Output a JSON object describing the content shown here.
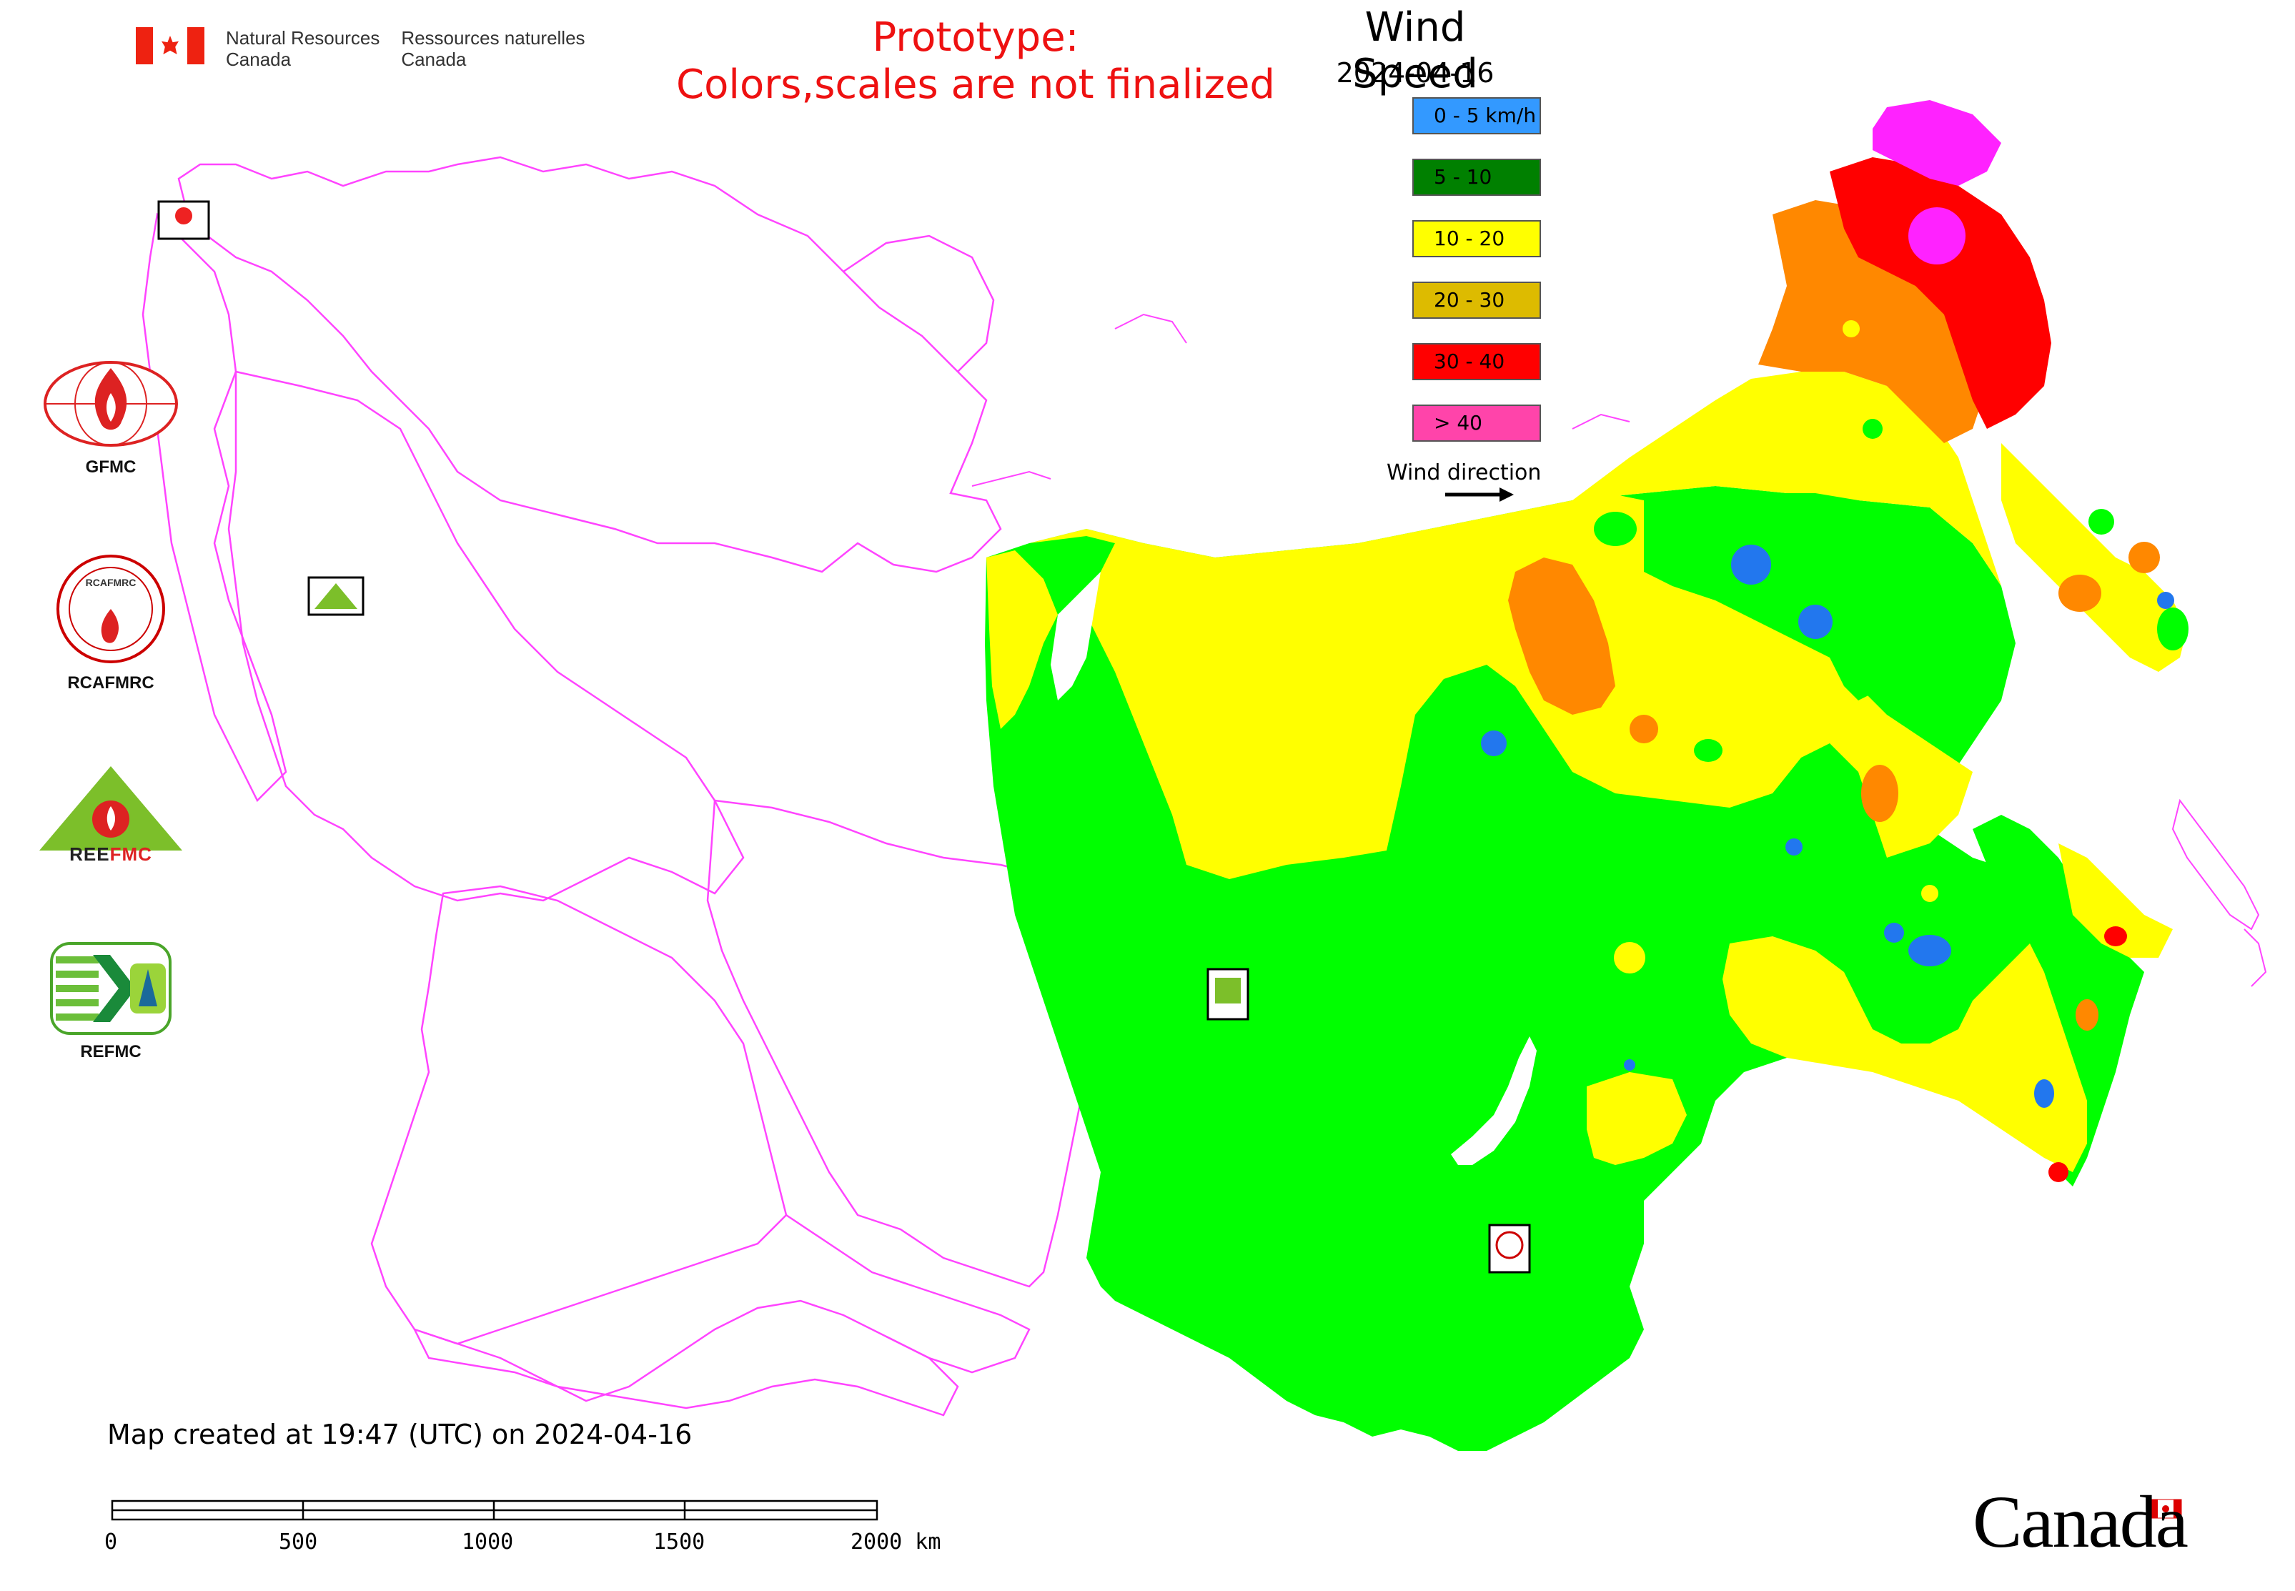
{
  "header": {
    "gov_en_line1": "Natural Resources",
    "gov_en_line2": "Canada",
    "gov_fr_line1": "Ressources naturelles",
    "gov_fr_line2": "Canada"
  },
  "prototype_notice": {
    "line1": "Prototype:",
    "line2": "Colors,scales are not finalized"
  },
  "legend": {
    "title": "Wind Speed",
    "date": "2024-04-16",
    "items": [
      {
        "label": "0 - 5 km/h",
        "color": "#3399ff"
      },
      {
        "label": "5 - 10",
        "color": "#008000"
      },
      {
        "label": "10 - 20",
        "color": "#ffff00"
      },
      {
        "label": "20 - 30",
        "color": "#ddbb00"
      },
      {
        "label": "30 - 40",
        "color": "#ff0000"
      },
      {
        "label": "> 40",
        "color": "#ff44aa"
      }
    ],
    "wind_direction_label": "Wind direction"
  },
  "organizations": [
    {
      "name": "GFMC",
      "icon": "gfmc-logo"
    },
    {
      "name": "RCAFMRC",
      "icon": "rcafmrc-logo"
    },
    {
      "name": "REEFMC",
      "icon": "reefmc-logo"
    },
    {
      "name": "REFMC",
      "icon": "refmc-logo"
    }
  ],
  "map": {
    "zone_colors": {
      "green": "#00ff00",
      "yellow": "#ffff00",
      "orange": "#ff8800",
      "red": "#ff0000",
      "magenta": "#ff22ff",
      "blue": "#2277ee",
      "border": "#ff44ff"
    }
  },
  "footer": {
    "created_text": "Map created at 19:47 (UTC) on 2024-04-16",
    "scale_labels": [
      "0",
      "500",
      "1000",
      "1500",
      "2000 km"
    ],
    "canada_wordmark": "Canada"
  }
}
